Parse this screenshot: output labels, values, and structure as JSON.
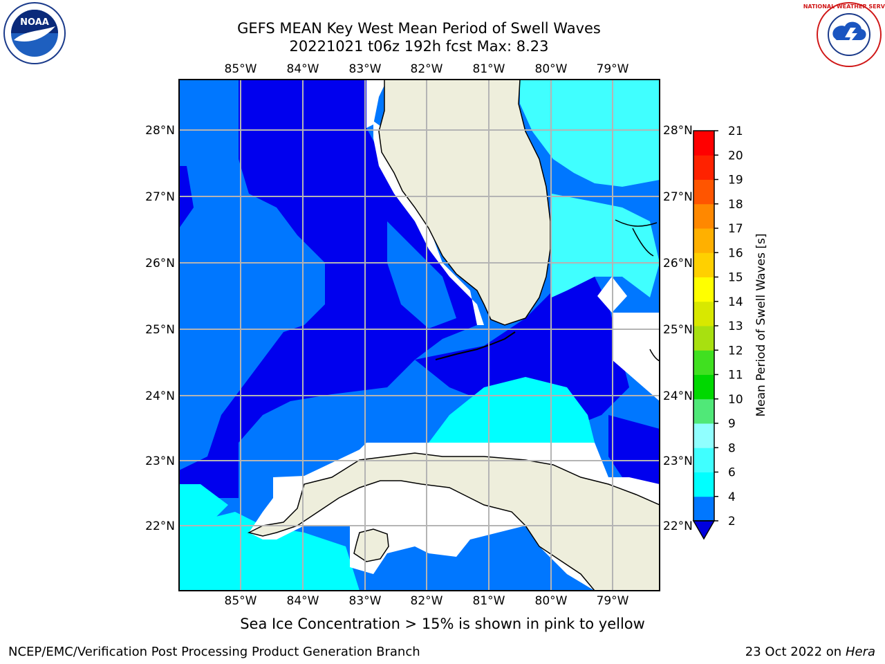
{
  "title": {
    "line1": "GEFS MEAN Key West Mean Period of Swell Waves",
    "line2": "20221021 t06z 192h fcst   Max: 8.23"
  },
  "map": {
    "lon_labels": [
      "85°W",
      "84°W",
      "83°W",
      "82°W",
      "81°W",
      "80°W",
      "79°W"
    ],
    "lat_labels": [
      "28°N",
      "27°N",
      "26°N",
      "25°N",
      "24°N",
      "23°N",
      "22°N"
    ],
    "colors": {
      "ocean_dark": "#0000ee",
      "ocean_mid": "#0077ff",
      "ocean_light": "#00ffff",
      "ocean_pale": "#40ffff",
      "land": "#eeeedc",
      "grid": "#b4b4b4"
    }
  },
  "colorbar": {
    "label": "Mean Period of Swell Waves [s]",
    "ticks": [
      "2",
      "4",
      "6",
      "8",
      "9",
      "10",
      "11",
      "12",
      "13",
      "14",
      "15",
      "16",
      "17",
      "18",
      "19",
      "20",
      "21"
    ],
    "colors": [
      "#0000dd",
      "#0077ff",
      "#00ffff",
      "#40ffff",
      "#90ffff",
      "#50e878",
      "#00d800",
      "#40e020",
      "#a8e010",
      "#d8e800",
      "#ffff00",
      "#ffd000",
      "#ffb000",
      "#ff8800",
      "#ff5500",
      "#ff2200",
      "#ff0000"
    ]
  },
  "logos": {
    "noaa_text": "NOAA",
    "nws_text": "NATIONAL WEATHER SERVICE"
  },
  "note": "Sea Ice Concentration > 15% is shown in pink to yellow",
  "footer": {
    "left": "NCEP/EMC/Verification Post Processing Product Generation Branch",
    "date": "23 Oct 2022 on",
    "machine": "Hera"
  }
}
